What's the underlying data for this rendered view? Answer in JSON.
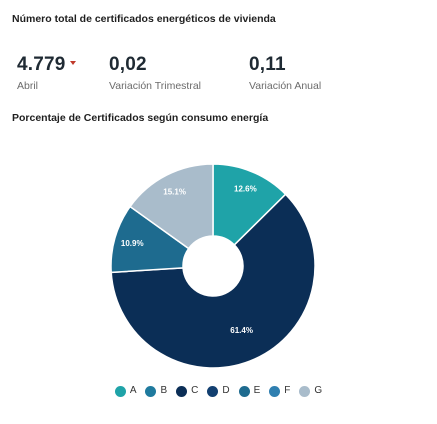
{
  "kpi_section": {
    "title": "Número total de certificados energéticos de vivienda",
    "kpis": [
      {
        "value": "4.779",
        "label": "Abril",
        "trend_color": "#c0392b"
      },
      {
        "value": "0,02",
        "label": "Variación Trimestral"
      },
      {
        "value": "0,11",
        "label": "Variación Anual"
      }
    ]
  },
  "chart_data": {
    "type": "pie",
    "title": "Porcentaje de Certificados según consumo energía",
    "hole": true,
    "categories": [
      "A",
      "B",
      "C",
      "D",
      "E",
      "F",
      "G"
    ],
    "values": [
      12.6,
      0,
      61.4,
      0,
      10.9,
      0,
      15.1
    ],
    "data_labels": [
      "12.6%",
      "",
      "61.4%",
      "",
      "10.9%",
      "",
      "15.1%"
    ],
    "colors": [
      "#1fa3a8",
      "#1f7a9e",
      "#0b2e56",
      "#123f70",
      "#1e6b8f",
      "#2f7fb0",
      "#a9bccb"
    ],
    "legend_placement": "bottom"
  }
}
